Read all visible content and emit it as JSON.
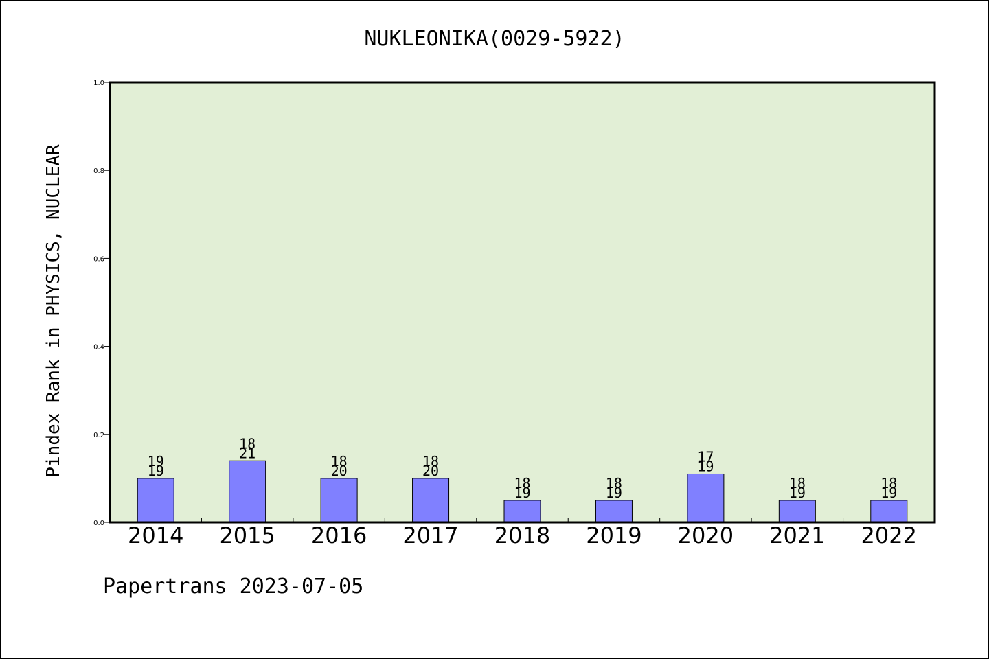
{
  "chart_data": {
    "type": "bar",
    "title": "NUKLEONIKA(0029-5922)",
    "xlabel": "",
    "ylabel": "Pindex Rank in PHYSICS, NUCLEAR",
    "categories": [
      "2014",
      "2015",
      "2016",
      "2017",
      "2018",
      "2019",
      "2020",
      "2021",
      "2022"
    ],
    "values": [
      0.1,
      0.14,
      0.1,
      0.1,
      0.05,
      0.05,
      0.11,
      0.05,
      0.05
    ],
    "label_top": [
      "19",
      "18",
      "18",
      "18",
      "18",
      "18",
      "17",
      "18",
      "18"
    ],
    "label_bottom": [
      "19",
      "21",
      "20",
      "20",
      "19",
      "19",
      "19",
      "19",
      "19"
    ],
    "ylim": [
      0,
      1.0
    ],
    "yticks": [
      "0.0",
      "0.2",
      "0.4",
      "0.6",
      "0.8",
      "1.0"
    ],
    "grid": false,
    "legend": "none",
    "colors": {
      "plot_background": "#e2efd6",
      "bar_fill": "#8080ff",
      "bar_stroke": "#000000"
    }
  },
  "footer": "Papertrans 2023-07-05"
}
